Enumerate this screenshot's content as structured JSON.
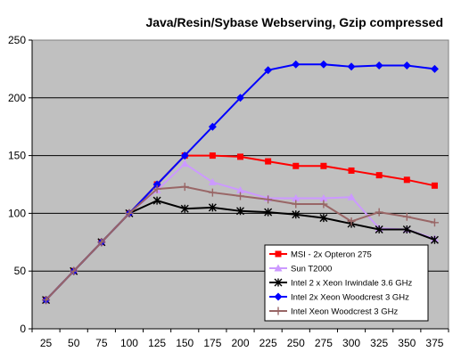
{
  "chart_data": {
    "type": "line",
    "title": "Java/Resin/Sybase Webserving, Gzip compressed",
    "xlabel": "",
    "ylabel": "",
    "x": [
      25,
      50,
      75,
      100,
      125,
      150,
      175,
      200,
      225,
      250,
      275,
      300,
      325,
      350,
      375
    ],
    "xlim": [
      12.5,
      387.5
    ],
    "ylim": [
      0,
      250
    ],
    "yticks": [
      0,
      50,
      100,
      150,
      200,
      250
    ],
    "grid": "horizontal",
    "plot_background": "#c0c0c0",
    "legend_position": "bottom-right",
    "series": [
      {
        "name": "MSI - 2x Opteron 275",
        "color": "#ff0000",
        "marker": "square",
        "values": [
          25,
          50,
          75,
          100,
          125,
          150,
          150,
          149,
          145,
          141,
          141,
          137,
          133,
          129,
          124
        ]
      },
      {
        "name": "Sun T2000",
        "color": "#cc99ff",
        "marker": "triangle",
        "values": [
          25,
          50,
          75,
          100,
          120,
          143,
          127,
          120,
          113,
          113,
          113,
          114,
          87,
          86,
          78
        ]
      },
      {
        "name": "Intel 2 x Xeon Irwindale 3.6 GHz",
        "color": "#000000",
        "marker": "star",
        "values": [
          25,
          50,
          75,
          100,
          111,
          104,
          105,
          102,
          101,
          99,
          96,
          91,
          86,
          86,
          77
        ]
      },
      {
        "name": "Intel 2x Xeon Woodcrest 3 GHz",
        "color": "#0000ff",
        "marker": "diamond",
        "values": [
          25,
          50,
          75,
          100,
          125,
          150,
          175,
          200,
          224,
          229,
          229,
          227,
          228,
          228,
          225
        ]
      },
      {
        "name": "Intel Xeon Woodcrest 3 GHz",
        "color": "#996666",
        "marker": "plus",
        "values": [
          25,
          50,
          75,
          100,
          121,
          123,
          118,
          115,
          112,
          108,
          108,
          93,
          101,
          97,
          92
        ]
      }
    ]
  }
}
